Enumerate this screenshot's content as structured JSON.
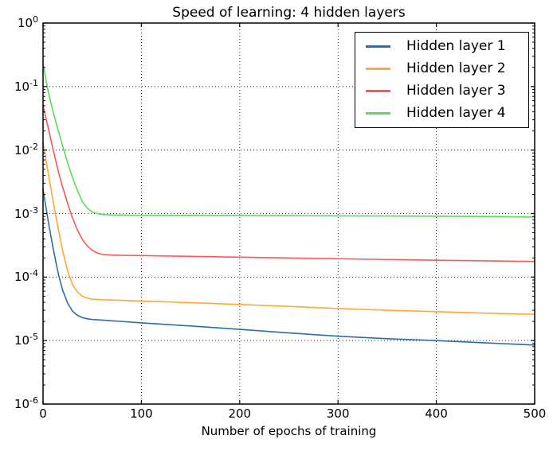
{
  "chart_data": {
    "type": "line",
    "title": "Speed of learning: 4 hidden layers",
    "xlabel": "Number of epochs of training",
    "ylabel": "",
    "x_axis": {
      "min": 0,
      "max": 500,
      "tick_labels": [
        "0",
        "100",
        "200",
        "300",
        "400",
        "500"
      ],
      "tick_values": [
        0,
        100,
        200,
        300,
        400,
        500
      ]
    },
    "y_axis": {
      "scale": "log",
      "min_exponent": -6,
      "max_exponent": 0,
      "tick_exponents": [
        "0",
        "-1",
        "-2",
        "-3",
        "-4",
        "-5",
        "-6"
      ]
    },
    "grid": {
      "style": "dotted",
      "color": "#000000"
    },
    "legend": {
      "position": "upper-right",
      "border_color": "#000000"
    },
    "x": [
      0,
      1,
      2,
      3,
      4,
      5,
      6,
      7,
      8,
      10,
      13,
      16,
      20,
      25,
      30,
      35,
      40,
      45,
      50,
      55,
      60,
      70,
      80,
      100,
      150,
      200,
      250,
      300,
      350,
      400,
      450,
      500
    ],
    "series": [
      {
        "name": "Hidden layer 1",
        "color": "#2A6EA6",
        "values": [
          0.0024,
          0.0019,
          0.00155,
          0.00125,
          0.001,
          0.00081,
          0.00066,
          0.00054,
          0.00044,
          0.0003,
          0.000175,
          0.000105,
          6.2e-05,
          3.9e-05,
          2.9e-05,
          2.5e-05,
          2.3e-05,
          2.2e-05,
          2.15e-05,
          2.12e-05,
          2.1e-05,
          2.05e-05,
          2e-05,
          1.9e-05,
          1.7e-05,
          1.5e-05,
          1.32e-05,
          1.17e-05,
          1.07e-05,
          1e-05,
          9.2e-06,
          8.5e-06
        ]
      },
      {
        "name": "Hidden layer 2",
        "color": "#FFA933",
        "values": [
          0.013,
          0.0106,
          0.0087,
          0.007,
          0.0057,
          0.0046,
          0.0038,
          0.0031,
          0.0025,
          0.00165,
          0.00092,
          0.00052,
          0.00026,
          0.000125,
          7.6e-05,
          5.8e-05,
          5e-05,
          4.65e-05,
          4.5e-05,
          4.45e-05,
          4.4e-05,
          4.35e-05,
          4.3e-05,
          4.2e-05,
          3.95e-05,
          3.7e-05,
          3.45e-05,
          3.2e-05,
          3e-05,
          2.85e-05,
          2.7e-05,
          2.6e-05
        ]
      },
      {
        "name": "Hidden layer 3",
        "color": "#FF5555",
        "values": [
          0.05,
          0.043,
          0.037,
          0.0315,
          0.027,
          0.0232,
          0.02,
          0.017,
          0.0145,
          0.0105,
          0.0067,
          0.0043,
          0.0026,
          0.00145,
          0.00085,
          0.00055,
          0.00039,
          0.00031,
          0.000265,
          0.00024,
          0.000228,
          0.000222,
          0.00022,
          0.000218,
          0.000212,
          0.000206,
          0.0002,
          0.000194,
          0.000189,
          0.000184,
          0.00018,
          0.000176
        ]
      },
      {
        "name": "Hidden layer 4",
        "color": "#55DD55",
        "values": [
          0.23,
          0.19,
          0.155,
          0.127,
          0.105,
          0.088,
          0.075,
          0.064,
          0.055,
          0.042,
          0.028,
          0.019,
          0.0115,
          0.0063,
          0.0037,
          0.0023,
          0.00155,
          0.00122,
          0.00106,
          0.001,
          0.00097,
          0.00095,
          0.000945,
          0.00094,
          0.000935,
          0.00093,
          0.000925,
          0.00092,
          0.000915,
          0.00091,
          0.0009,
          0.00088
        ]
      }
    ]
  }
}
